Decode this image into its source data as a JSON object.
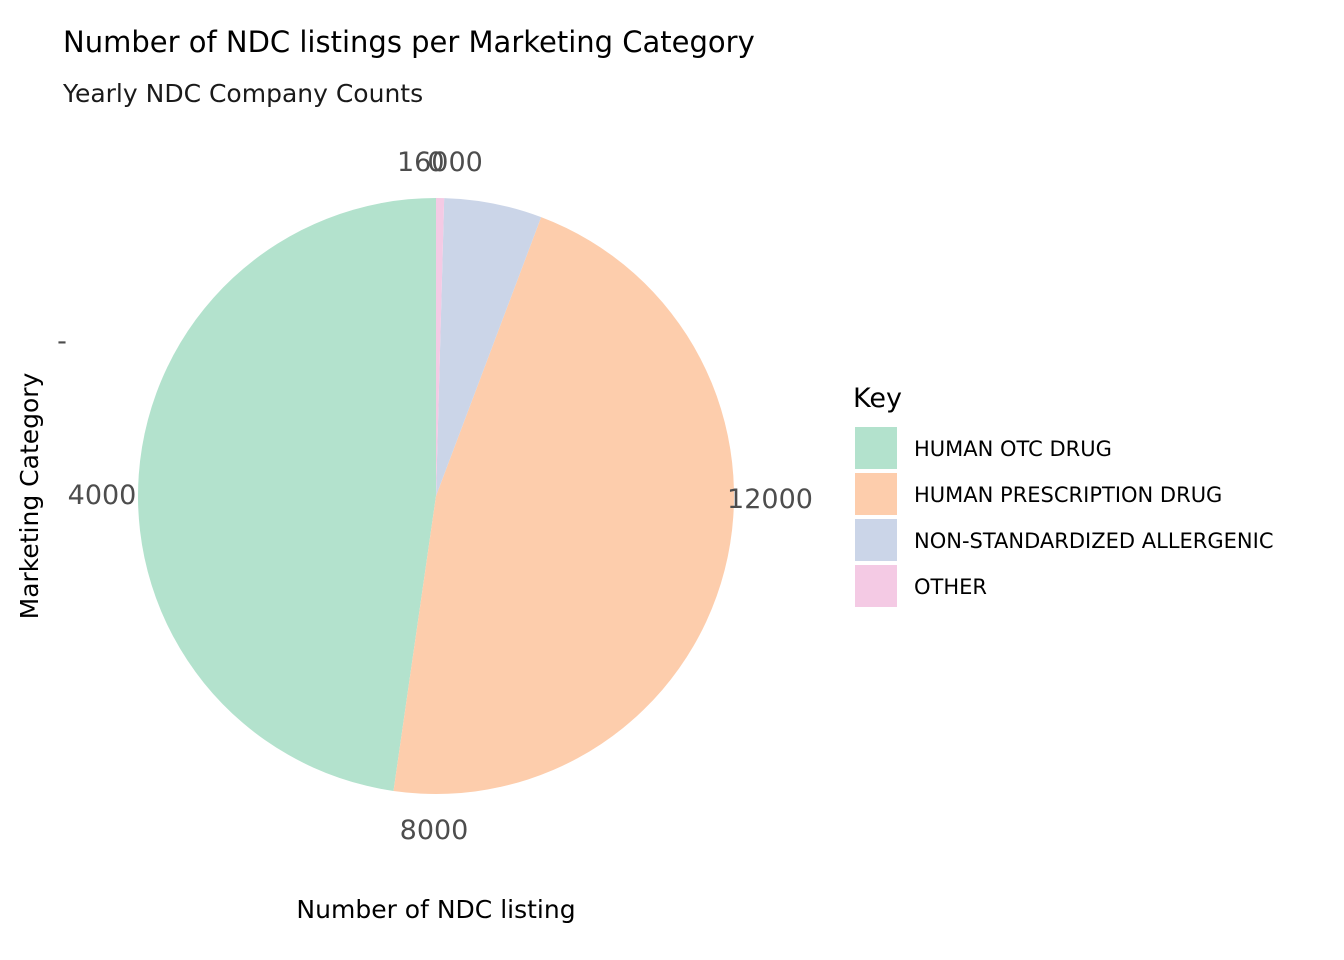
{
  "chart_data": {
    "type": "pie",
    "title": "Number of NDC listings per Marketing Category",
    "subtitle": "Yearly NDC Company Counts",
    "xlabel": "Number of NDC listing",
    "ylabel": "Marketing Category",
    "y_tick_label": "-",
    "total": 16030,
    "categories": [
      "HUMAN OTC DRUG",
      "HUMAN PRESCRIPTION DRUG",
      "NON-STANDARDIZED ALLERGENIC",
      "OTHER"
    ],
    "values": [
      7650,
      7460,
      850,
      70
    ],
    "colors": [
      "#b3e2cd",
      "#fdcdac",
      "#cbd5e8",
      "#f4cae4"
    ],
    "ticks": [
      0,
      4000,
      8000,
      12000,
      16000
    ],
    "tick_labels": [
      "0",
      "4000",
      "8000",
      "12000",
      "16000"
    ],
    "direction": "counterclockwise",
    "legend": {
      "title": "Key",
      "position": "right"
    },
    "grid": false
  }
}
